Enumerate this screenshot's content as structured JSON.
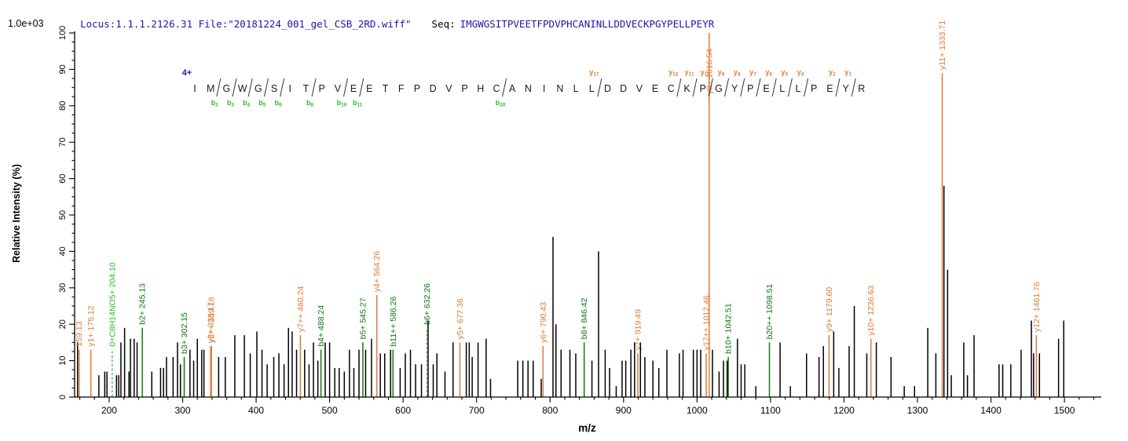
{
  "header": {
    "locus_file": "Locus:1.1.1.2126.31 File:\"20181224_001_gel_CSB_2RD.wiff\"",
    "seq_label": "Seq:",
    "sequence": "IMGWGSITPVEETFPDVPHCANINLLDDVECKPGYPELLPEYR"
  },
  "y_axis": {
    "title": "Relative  Intensity (%)",
    "scale_note": "1.0e+03",
    "min": 0,
    "max": 100,
    "major_step": 10,
    "minor_step": 2.5,
    "tick_labels": [
      "0",
      "10",
      "20",
      "30",
      "40",
      "50",
      "60",
      "70",
      "80",
      "90",
      "100"
    ]
  },
  "x_axis": {
    "title": "m/z",
    "domain_min": 153,
    "domain_max": 1548,
    "major_step": 100,
    "minor_step": 20,
    "tick_labels": [
      "200",
      "300",
      "400",
      "500",
      "600",
      "700",
      "800",
      "900",
      "1000",
      "1100",
      "1200",
      "1300",
      "1400",
      "1500"
    ],
    "first_major": 200,
    "last_major": 1500
  },
  "sequence_panel": {
    "charge_label": "4+",
    "b_markers": [
      2,
      3,
      4,
      5,
      6,
      8,
      10,
      11,
      20
    ],
    "y_markers": [
      17,
      12,
      11,
      10,
      9,
      8,
      7,
      6,
      5,
      4,
      2,
      1
    ]
  },
  "colors": {
    "header_blue": "#1a17ae",
    "y_ion": "#e07b35",
    "b_ion": "#0c7a0c",
    "special_ion": "#2db92d",
    "black_peak": "#000000",
    "axis": "#000000",
    "residue_text": "#1a1a1a",
    "dashed_special": "#54c254",
    "dashed_b": "#9aa89a"
  },
  "chart_data": {
    "type": "bar",
    "subtype": "ms2-fragmentation-stick-spectrum",
    "xlabel": "m/z",
    "ylabel": "Relative  Intensity (%)",
    "ylim": [
      0,
      100
    ],
    "xlim": [
      153,
      1548
    ],
    "intensity_scale_note": "1.0e+03",
    "peaks_columns": [
      "mz",
      "intensity_pct",
      "ion_type(k=unassigned,y=y-ion,b=b-ion,s=special)",
      "label",
      "dashed"
    ],
    "peaks": [
      [
        157,
        15,
        "k"
      ],
      [
        159.13,
        13,
        "y",
        "159.13"
      ],
      [
        175.12,
        13,
        "y",
        "y1+ 175.12"
      ],
      [
        186,
        6,
        "k"
      ],
      [
        194,
        7,
        "k"
      ],
      [
        197,
        7,
        "k"
      ],
      [
        204.1,
        13,
        "s",
        "0+C8H14NO5+ 204.10",
        true
      ],
      [
        210,
        6,
        "k"
      ],
      [
        213,
        6,
        "k"
      ],
      [
        216,
        15,
        "k"
      ],
      [
        221,
        19,
        "k"
      ],
      [
        227,
        7,
        "k"
      ],
      [
        229,
        16,
        "k"
      ],
      [
        234,
        16,
        "k"
      ],
      [
        238,
        15,
        "k"
      ],
      [
        245.13,
        19,
        "b",
        "b2+ 245.13"
      ],
      [
        258,
        7,
        "k"
      ],
      [
        270,
        8,
        "k"
      ],
      [
        274,
        8,
        "k"
      ],
      [
        278,
        11,
        "k"
      ],
      [
        287,
        11,
        "k"
      ],
      [
        293,
        15,
        "k"
      ],
      [
        297,
        9,
        "k"
      ],
      [
        302.15,
        11,
        "b",
        "b3+ 302.15"
      ],
      [
        310,
        13,
        "k"
      ],
      [
        315,
        10,
        "k"
      ],
      [
        320,
        16,
        "k"
      ],
      [
        326,
        13,
        "k"
      ],
      [
        329,
        13,
        "k"
      ],
      [
        338.17,
        14,
        "y",
        "y2+ 338.17"
      ],
      [
        339.18,
        14,
        "y",
        "y5++ 339.18"
      ],
      [
        349,
        11,
        "k"
      ],
      [
        358,
        11,
        "k"
      ],
      [
        371,
        17,
        "k"
      ],
      [
        384,
        17,
        "k"
      ],
      [
        392,
        12,
        "k"
      ],
      [
        401,
        18,
        "k"
      ],
      [
        408,
        13,
        "k"
      ],
      [
        415,
        9,
        "k"
      ],
      [
        424,
        11,
        "k"
      ],
      [
        431,
        12,
        "k"
      ],
      [
        438,
        9,
        "k"
      ],
      [
        444,
        19,
        "k"
      ],
      [
        449,
        18,
        "k"
      ],
      [
        455,
        13,
        "k"
      ],
      [
        460.24,
        17,
        "y",
        "y7++ 460.24"
      ],
      [
        466,
        13,
        "k"
      ],
      [
        472,
        9,
        "k"
      ],
      [
        478,
        15,
        "k"
      ],
      [
        484,
        10,
        "k"
      ],
      [
        488.24,
        13,
        "b",
        "b4+ 488.24"
      ],
      [
        494,
        15,
        "k"
      ],
      [
        500,
        15,
        "k"
      ],
      [
        507,
        8,
        "k"
      ],
      [
        513,
        8,
        "k"
      ],
      [
        520,
        7,
        "k"
      ],
      [
        527,
        13,
        "k"
      ],
      [
        533,
        8,
        "k"
      ],
      [
        540,
        13,
        "k"
      ],
      [
        545.27,
        15,
        "b",
        "b5+ 545.27"
      ],
      [
        549,
        13,
        "k"
      ],
      [
        557,
        16,
        "k"
      ],
      [
        564.26,
        28,
        "y",
        "y4+ 564.26"
      ],
      [
        569,
        12,
        "k"
      ],
      [
        575,
        12,
        "k"
      ],
      [
        583,
        13,
        "k"
      ],
      [
        586.26,
        13,
        "b",
        "b11++ 586.26"
      ],
      [
        596,
        8,
        "k"
      ],
      [
        603,
        12,
        "k"
      ],
      [
        610,
        13,
        "k"
      ],
      [
        617,
        9,
        "k"
      ],
      [
        625,
        9,
        "k"
      ],
      [
        632.26,
        19,
        "b",
        "b6+ 632.26",
        true
      ],
      [
        634,
        21,
        "k"
      ],
      [
        641,
        9,
        "k"
      ],
      [
        646,
        12,
        "k"
      ],
      [
        657,
        7,
        "k"
      ],
      [
        668,
        15,
        "k"
      ],
      [
        677.36,
        15,
        "y",
        "y5+ 677.36"
      ],
      [
        686,
        15,
        "k"
      ],
      [
        690,
        15,
        "k"
      ],
      [
        694,
        11,
        "k"
      ],
      [
        702,
        15,
        "k"
      ],
      [
        713,
        16,
        "k"
      ],
      [
        719,
        5,
        "k"
      ],
      [
        756,
        10,
        "k"
      ],
      [
        763,
        10,
        "k"
      ],
      [
        770,
        10,
        "k"
      ],
      [
        777,
        10,
        "k"
      ],
      [
        788,
        5,
        "k"
      ],
      [
        790.43,
        14,
        "y",
        "y6+ 790.43"
      ],
      [
        804,
        44,
        "k"
      ],
      [
        808,
        20,
        "k"
      ],
      [
        815,
        13,
        "k"
      ],
      [
        827,
        13,
        "k"
      ],
      [
        835,
        12,
        "k"
      ],
      [
        846.42,
        15,
        "b",
        "b8+ 846.42"
      ],
      [
        857,
        10,
        "k"
      ],
      [
        866,
        40,
        "k"
      ],
      [
        875,
        13,
        "k"
      ],
      [
        881,
        8,
        "k"
      ],
      [
        890,
        3,
        "k"
      ],
      [
        898,
        10,
        "k"
      ],
      [
        903,
        10,
        "k"
      ],
      [
        910,
        13,
        "k"
      ],
      [
        915,
        15,
        "k"
      ],
      [
        919.49,
        12,
        "y",
        "y7+ 919.49"
      ],
      [
        923,
        15,
        "k"
      ],
      [
        929,
        11,
        "k"
      ],
      [
        940,
        10,
        "k"
      ],
      [
        948,
        8,
        "k"
      ],
      [
        959,
        13,
        "k"
      ],
      [
        976,
        12,
        "k"
      ],
      [
        981,
        13,
        "k"
      ],
      [
        995,
        13,
        "k"
      ],
      [
        1000,
        13,
        "k"
      ],
      [
        1005,
        13,
        "k"
      ],
      [
        1012.46,
        12,
        "y",
        "y17++ 1012.46"
      ],
      [
        1016.54,
        100,
        "y",
        "y8+ 1016.54"
      ],
      [
        1021,
        13,
        "k"
      ],
      [
        1030,
        7,
        "k"
      ],
      [
        1036,
        10,
        "k"
      ],
      [
        1041,
        10,
        "k"
      ],
      [
        1042.51,
        11,
        "b",
        "b10+ 1042.51"
      ],
      [
        1055,
        16,
        "k"
      ],
      [
        1060,
        9,
        "k"
      ],
      [
        1065,
        9,
        "k"
      ],
      [
        1080,
        3,
        "k"
      ],
      [
        1098.51,
        15,
        "b",
        "b20++ 1098.51"
      ],
      [
        1113,
        15,
        "k"
      ],
      [
        1127,
        3,
        "k"
      ],
      [
        1149,
        12,
        "k"
      ],
      [
        1166,
        11,
        "k"
      ],
      [
        1172,
        14,
        "k"
      ],
      [
        1179.6,
        17,
        "y",
        "y9+ 1179.60"
      ],
      [
        1186,
        18,
        "k"
      ],
      [
        1193,
        8,
        "k"
      ],
      [
        1207,
        14,
        "k"
      ],
      [
        1214,
        25,
        "k"
      ],
      [
        1231,
        12,
        "k"
      ],
      [
        1236.63,
        16,
        "y",
        "y10+ 1236.63"
      ],
      [
        1244,
        15,
        "k"
      ],
      [
        1264,
        11,
        "k"
      ],
      [
        1282,
        3,
        "k"
      ],
      [
        1296,
        3,
        "k"
      ],
      [
        1314,
        19,
        "k"
      ],
      [
        1325,
        12,
        "k"
      ],
      [
        1333.71,
        89,
        "y",
        "y11+ 1333.71"
      ],
      [
        1336,
        58,
        "k"
      ],
      [
        1341,
        35,
        "k"
      ],
      [
        1346,
        6,
        "k"
      ],
      [
        1363,
        15,
        "k"
      ],
      [
        1368,
        6,
        "k"
      ],
      [
        1377,
        17,
        "k"
      ],
      [
        1411,
        9,
        "k"
      ],
      [
        1416,
        9,
        "k"
      ],
      [
        1427,
        9,
        "k"
      ],
      [
        1441,
        13,
        "k"
      ],
      [
        1455,
        21,
        "k"
      ],
      [
        1458,
        12,
        "k"
      ],
      [
        1461.76,
        17,
        "y",
        "y12+ 1461.76"
      ],
      [
        1466,
        12,
        "k"
      ],
      [
        1492,
        16,
        "k"
      ],
      [
        1499,
        21,
        "k"
      ]
    ]
  }
}
